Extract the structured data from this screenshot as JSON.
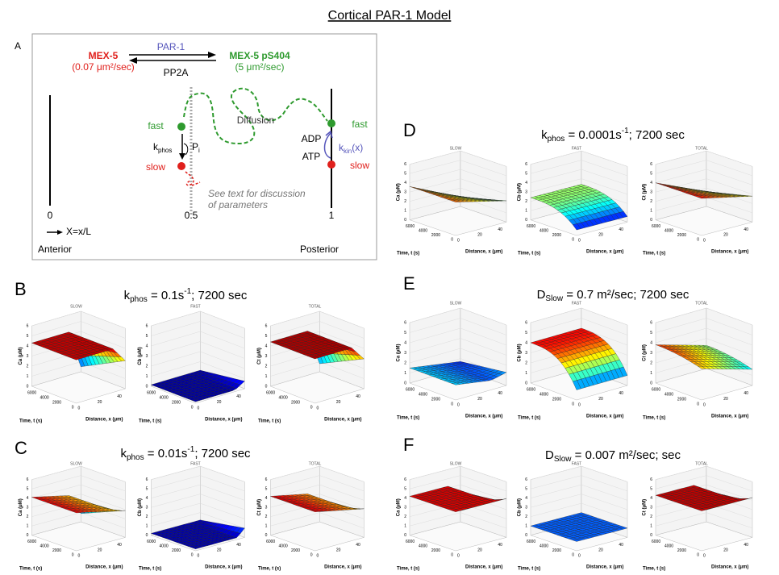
{
  "title": "Cortical PAR-1 Model",
  "panel_a": {
    "letter": "A",
    "par1": "PAR-1",
    "mex5": "MEX-5",
    "mex5_rate": "(0.07 μm²/sec)",
    "mex5p": "MEX-5 pS404",
    "mex5p_rate": "(5 μm²/sec)",
    "pp2a": "PP2A",
    "diffusion": "Diffusion",
    "fast_left": "fast",
    "slow_left": "slow",
    "kphos_symbol": "k",
    "kphos_sub": "phos",
    "pi_symbol": "P",
    "pi_sub": "i",
    "adp": "ADP",
    "atp": "ATP",
    "kkin_symbol": "k",
    "kkin_sub": "kin",
    "kkin_arg": "(x)",
    "fast_right": "fast",
    "slow_right": "slow",
    "note_line1": "See text for discussion",
    "note_line2": "of parameters",
    "pos0": "0",
    "pos05": "0.5",
    "pos1": "1",
    "x_def": "X=x/L",
    "anterior": "Anterior",
    "posterior": "Posterior"
  },
  "simulations": [
    {
      "letter": "B",
      "symbol": "k",
      "sub": "phos",
      "text": " = 0.1s",
      "sup": "-1",
      "tail": "; 7200 sec"
    },
    {
      "letter": "C",
      "symbol": "k",
      "sub": "phos",
      "text": " = 0.01s",
      "sup": "-1",
      "tail": "; 7200 sec"
    },
    {
      "letter": "D",
      "symbol": "k",
      "sub": "phos",
      "text": " = 0.0001s",
      "sup": "-1",
      "tail": "; 7200 sec"
    },
    {
      "letter": "E",
      "symbol": "D",
      "sub": "Slow",
      "text": " = 0.7   m²/sec; 7200 sec"
    },
    {
      "letter": "F",
      "symbol": "D",
      "sub": "Slow",
      "text": " = 0.007   m²/sec; sec"
    }
  ],
  "plot_titles": [
    "SLOW",
    "FAST",
    "TOTAL"
  ],
  "z_labels": [
    "Ca (μM)",
    "Cb (μM)",
    "Ct (μM)"
  ],
  "time_label": "Time, t (s)",
  "distance_label": "Distance, x (μm)",
  "z_ticks": [
    "0",
    "1",
    "2",
    "3",
    "4",
    "5",
    "6"
  ],
  "time_ticks": [
    "0",
    "2000",
    "4000",
    "6000"
  ],
  "distance_ticks": [
    "0",
    "20",
    "40"
  ]
}
